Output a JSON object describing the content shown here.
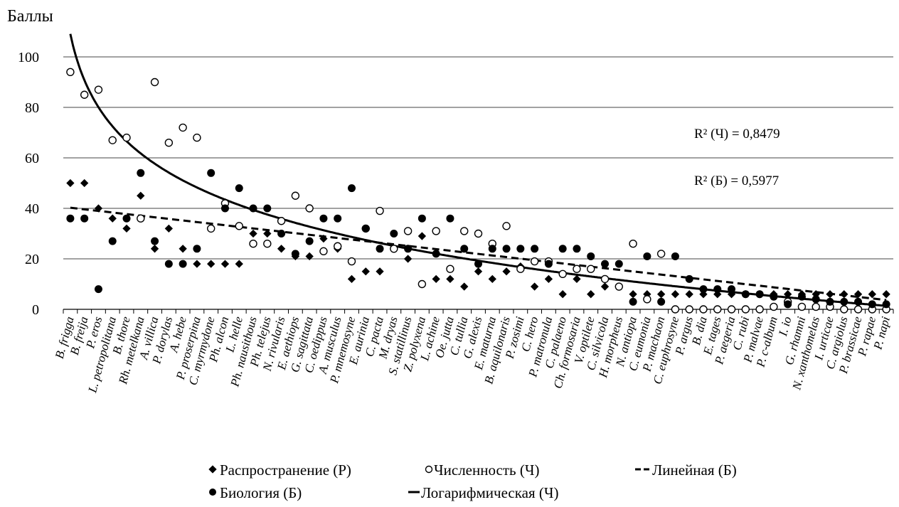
{
  "chart_data": {
    "type": "scatter",
    "ylabel": "Баллы",
    "ylim": [
      0,
      110
    ],
    "yticks": [
      0,
      20,
      40,
      60,
      80,
      100
    ],
    "grid": true,
    "legend_position": "bottom",
    "categories": [
      "B. frigga",
      "B. freija",
      "P. eros",
      "L. petropolitana",
      "B. thore",
      "Rh. metelkana",
      "A. villica",
      "P. dorylas",
      "A. hebe",
      "P. proserpina",
      "C. myrmydone",
      "Ph. alcon",
      "L. helle",
      "Ph. nausithous",
      "Ph. telejus",
      "N. rivularis",
      "E. aethiops",
      "G. sagittata",
      "C. oedippus",
      "A. musculus",
      "P. mnemosyne",
      "E. aurinia",
      "C. pacta",
      "M. dryas",
      "S. statillinus",
      "Z. polyxena",
      "L. achine",
      "Oe. jutta",
      "C. tullia",
      "G. alexis",
      "E. maturna",
      "B. aquilonaris",
      "P. zosimi",
      "C. hero",
      "P. matronula",
      "C. palaeno",
      "Ch. formosaria",
      "V. optilete",
      "C. silvicola",
      "H. morpheus",
      "N. antiopa",
      "C. eumonia",
      "P. machaon",
      "C. euphrosyne",
      "P. argus",
      "B. dia",
      "E. tages",
      "P. aegeria",
      "C. rubi",
      "P. malvae",
      "P. c-album",
      "I. io",
      "G. rhamni",
      "N. xanthomelas",
      "I. urticae",
      "C. argiolus",
      "P. brassicae",
      "P. rapae",
      "P. napi"
    ],
    "series": [
      {
        "name": "Распространение (Р)",
        "marker": "diamond",
        "color": "#000000",
        "values": [
          50,
          50,
          40,
          36,
          32,
          45,
          24,
          32,
          24,
          18,
          18,
          18,
          18,
          30,
          30,
          24,
          21,
          21,
          28,
          24,
          12,
          15,
          15,
          24,
          20,
          29,
          12,
          12,
          9,
          15,
          12,
          15,
          17,
          9,
          12,
          6,
          12,
          6,
          9,
          9,
          6,
          6,
          6,
          6,
          6,
          6,
          6,
          6,
          6,
          6,
          6,
          6,
          6,
          6,
          6,
          6,
          6,
          6,
          6
        ]
      },
      {
        "name": "Численность (Ч)",
        "marker": "open-circle",
        "color": "#000000",
        "values": [
          94,
          85,
          87,
          67,
          68,
          36,
          90,
          66,
          72,
          68,
          32,
          42,
          33,
          26,
          26,
          35,
          45,
          40,
          23,
          25,
          19,
          32,
          39,
          24,
          31,
          10,
          31,
          16,
          31,
          30,
          26,
          33,
          16,
          19,
          19,
          14,
          16,
          16,
          12,
          9,
          26,
          4,
          22,
          0,
          0,
          0,
          0,
          0,
          0,
          0,
          1,
          3,
          1,
          1,
          1,
          0,
          0,
          0,
          0
        ]
      },
      {
        "name": "Биология (Б)",
        "marker": "filled-circle",
        "color": "#000000",
        "values": [
          36,
          36,
          8,
          27,
          36,
          54,
          27,
          18,
          18,
          24,
          54,
          40,
          48,
          40,
          40,
          30,
          22,
          27,
          36,
          36,
          48,
          32,
          24,
          30,
          24,
          36,
          22,
          36,
          24,
          18,
          24,
          24,
          24,
          24,
          18,
          24,
          24,
          21,
          18,
          18,
          3,
          21,
          3,
          21,
          12,
          8,
          8,
          8,
          6,
          6,
          5,
          2,
          5,
          4,
          3,
          3,
          3,
          2,
          2
        ]
      }
    ],
    "trendlines": [
      {
        "name": "Линейная (Б)",
        "kind": "linear",
        "of": "Биология (Б)",
        "style": "dashed"
      },
      {
        "name": "Логарифмическая (Ч)",
        "kind": "logarithmic",
        "of": "Численность (Ч)",
        "style": "solid"
      }
    ],
    "annotations": [
      {
        "text": "R² (Ч) = 0,8479"
      },
      {
        "text": "R² (Б) = 0,5977"
      }
    ]
  }
}
